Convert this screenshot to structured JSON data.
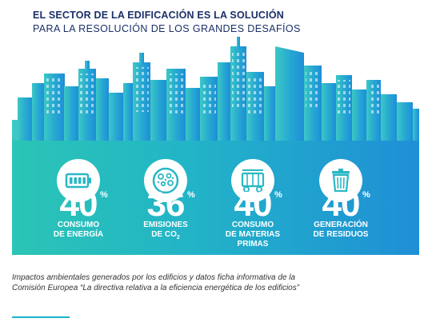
{
  "header": {
    "title_bold": "EL SECTOR DE LA EDIFICACIÓN ES LA SOLUCIÓN",
    "title_light": "PARA LA RESOLUCIÓN DE LOS GRANDES DESAFÍOS"
  },
  "stats": [
    {
      "icon": "battery-icon",
      "value": "40",
      "unit": "%",
      "label_lines": [
        "CONSUMO",
        "DE ENERGÍA"
      ]
    },
    {
      "icon": "emissions-icon",
      "value": "36",
      "unit": "%",
      "label_lines": [
        "EMISIONES",
        "DE CO"
      ],
      "label_sub": "2"
    },
    {
      "icon": "materials-cart-icon",
      "value": "40",
      "unit": "%",
      "label_lines": [
        "CONSUMO",
        "DE MATERIAS",
        "PRIMAS"
      ]
    },
    {
      "icon": "trash-can-icon",
      "value": "40",
      "unit": "%",
      "label_lines": [
        "GENERACIÓN",
        "DE RESIDUOS"
      ]
    }
  ],
  "caption": "Impactos ambientales generados por los edificios y datos ficha informativa de la Comisión Europea “La directiva relativa a la eficiencia energética de los edificios”",
  "colors": {
    "title": "#1b2f68",
    "skyline_light": "#34c3c9",
    "skyline_dark": "#1e8fd8",
    "panel_start": "#2bc5b5",
    "panel_end": "#1f8fd6",
    "accent": "#1fb3c9"
  }
}
